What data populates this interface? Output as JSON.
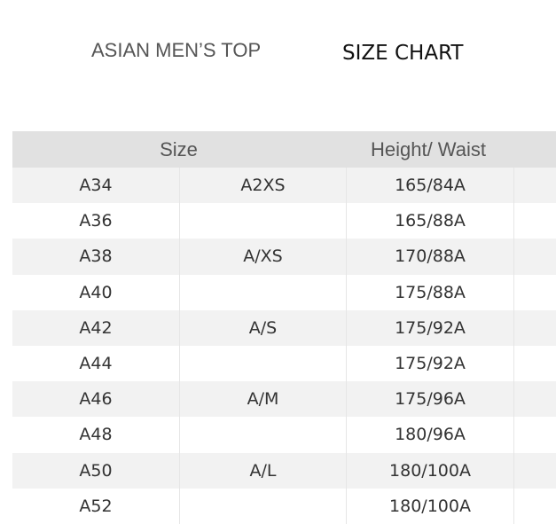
{
  "title": "ASIAN MEN’S TOP",
  "subtitle": "SIZE CHART",
  "headers": {
    "size": "Size",
    "height_waist": "Height/ Waist"
  },
  "rows": [
    {
      "code": "A34",
      "alpha": "A2XS",
      "hw": "165/84A"
    },
    {
      "code": "A36",
      "alpha": "",
      "hw": "165/88A"
    },
    {
      "code": "A38",
      "alpha": "A/XS",
      "hw": "170/88A"
    },
    {
      "code": "A40",
      "alpha": "",
      "hw": "175/88A"
    },
    {
      "code": "A42",
      "alpha": "A/S",
      "hw": "175/92A"
    },
    {
      "code": "A44",
      "alpha": "",
      "hw": "175/92A"
    },
    {
      "code": "A46",
      "alpha": "A/M",
      "hw": "175/96A"
    },
    {
      "code": "A48",
      "alpha": "",
      "hw": "180/96A"
    },
    {
      "code": "A50",
      "alpha": "A/L",
      "hw": "180/100A"
    },
    {
      "code": "A52",
      "alpha": "",
      "hw": "180/100A"
    }
  ]
}
